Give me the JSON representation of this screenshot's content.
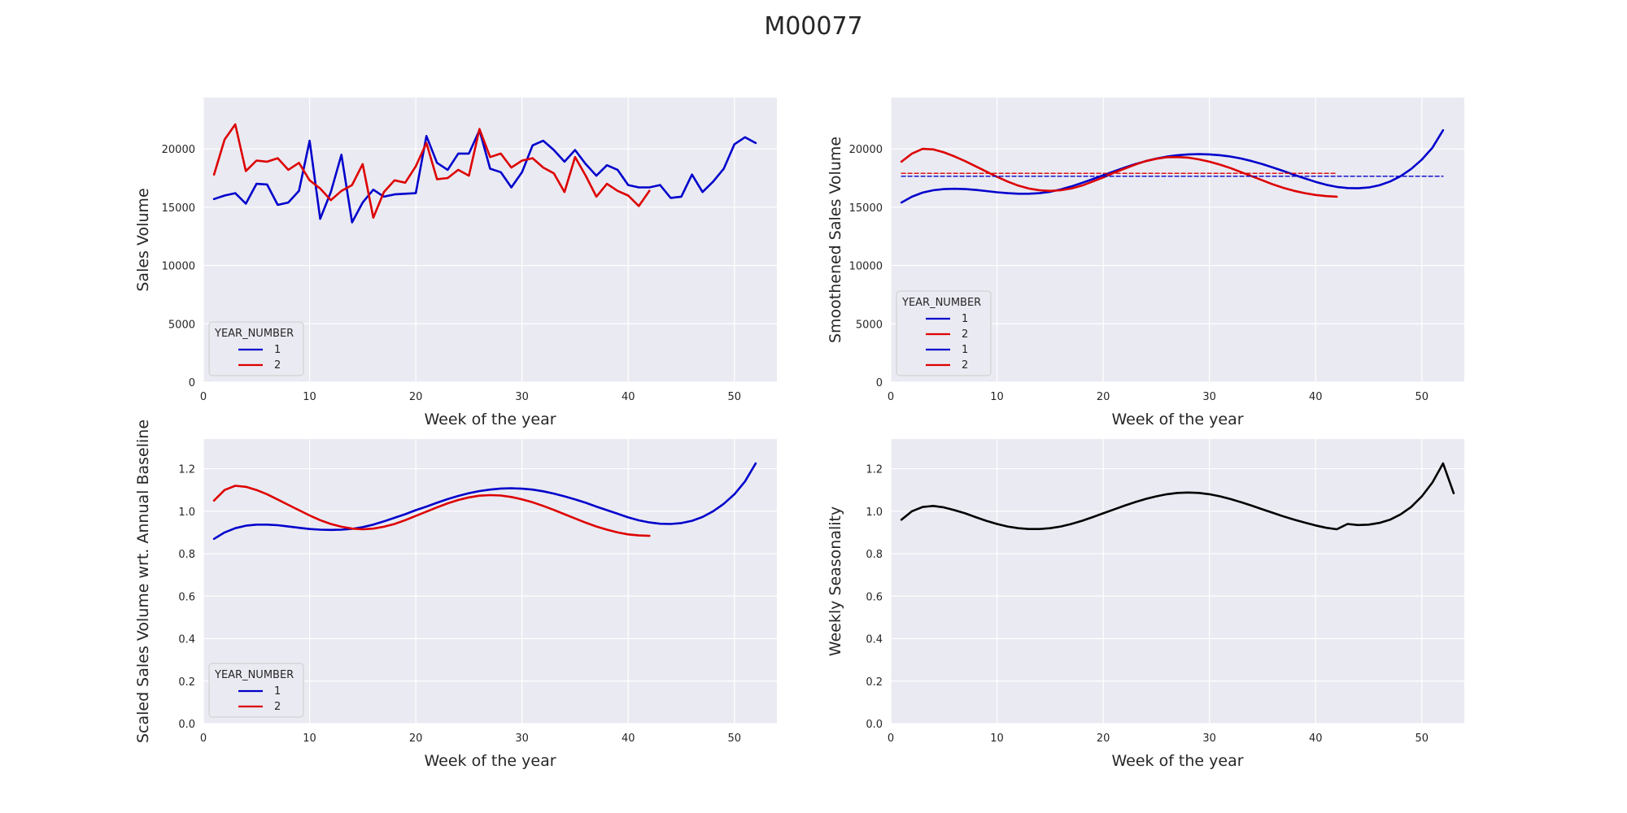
{
  "title": "M00077",
  "colors": {
    "year1": "#0000cc",
    "year2": "#dd0000",
    "combined": "#000000",
    "panel_bg": "#eaeaf2",
    "grid": "#ffffff"
  },
  "chart_data": [
    {
      "type": "line",
      "xlabel": "Week of the year",
      "ylabel": "Sales Volume",
      "xlim": [
        0,
        54
      ],
      "ylim": [
        0,
        24400
      ],
      "xticks": [
        0,
        10,
        20,
        30,
        40,
        50
      ],
      "yticks": [
        0,
        5000,
        10000,
        15000,
        20000
      ],
      "grid": true,
      "legend": {
        "title": "YEAR_NUMBER",
        "placement": "lower-left",
        "entries": [
          "1",
          "2"
        ]
      },
      "series": [
        {
          "name": "1",
          "color": "year1",
          "x": [
            1,
            2,
            3,
            4,
            5,
            6,
            7,
            8,
            9,
            10,
            11,
            12,
            13,
            14,
            15,
            16,
            17,
            18,
            19,
            20,
            21,
            22,
            23,
            24,
            25,
            26,
            27,
            28,
            29,
            30,
            31,
            32,
            33,
            34,
            35,
            36,
            37,
            38,
            39,
            40,
            41,
            42,
            43,
            44,
            45,
            46,
            47,
            48,
            49,
            50,
            51,
            52
          ],
          "y": [
            15700,
            16000,
            16200,
            15300,
            17000,
            16950,
            15200,
            15400,
            16400,
            20700,
            14000,
            16300,
            19500,
            13700,
            15400,
            16500,
            15900,
            16100,
            16150,
            16200,
            21100,
            18800,
            18200,
            19600,
            19600,
            21600,
            18300,
            18000,
            16700,
            18000,
            20300,
            20700,
            19900,
            18900,
            19900,
            18700,
            17700,
            18600,
            18200,
            16900,
            16700,
            16700,
            16900,
            15800,
            15900,
            17800,
            16300,
            17200,
            18300,
            20400,
            21000,
            20500
          ]
        },
        {
          "name": "2",
          "color": "year2",
          "x": [
            1,
            2,
            3,
            4,
            5,
            6,
            7,
            8,
            9,
            10,
            11,
            12,
            13,
            14,
            15,
            16,
            17,
            18,
            19,
            20,
            21,
            22,
            23,
            24,
            25,
            26,
            27,
            28,
            29,
            30,
            31,
            32,
            33,
            34,
            35,
            36,
            37,
            38,
            39,
            40,
            41,
            42
          ],
          "y": [
            17800,
            20800,
            22100,
            18100,
            19000,
            18900,
            19200,
            18200,
            18800,
            17300,
            16600,
            15600,
            16400,
            16900,
            18700,
            14100,
            16300,
            17300,
            17100,
            18500,
            20500,
            17400,
            17500,
            18200,
            17700,
            21700,
            19300,
            19600,
            18400,
            19000,
            19200,
            18400,
            17900,
            16300,
            19300,
            17700,
            15900,
            17000,
            16400,
            16000,
            15100,
            16400
          ]
        }
      ]
    },
    {
      "type": "line",
      "xlabel": "Week of the year",
      "ylabel": "Smoothened Sales Volume",
      "xlim": [
        0,
        54
      ],
      "ylim": [
        0,
        24400
      ],
      "xticks": [
        0,
        10,
        20,
        30,
        40,
        50
      ],
      "yticks": [
        0,
        5000,
        10000,
        15000,
        20000
      ],
      "grid": true,
      "legend": {
        "title": "YEAR_NUMBER",
        "placement": "lower-left",
        "entries": [
          "1",
          "2",
          "1",
          "2"
        ]
      },
      "series": [
        {
          "name": "1",
          "color": "year1",
          "style": "solid",
          "x": [
            1,
            2,
            3,
            4,
            5,
            6,
            7,
            8,
            9,
            10,
            11,
            12,
            13,
            14,
            15,
            16,
            17,
            18,
            19,
            20,
            21,
            22,
            23,
            24,
            25,
            26,
            27,
            28,
            29,
            30,
            31,
            32,
            33,
            34,
            35,
            36,
            37,
            38,
            39,
            40,
            41,
            42,
            43,
            44,
            45,
            46,
            47,
            48,
            49,
            50,
            51,
            52
          ],
          "y": [
            15400,
            15900,
            16250,
            16450,
            16550,
            16580,
            16550,
            16480,
            16380,
            16280,
            16200,
            16150,
            16150,
            16200,
            16320,
            16520,
            16780,
            17080,
            17400,
            17740,
            18070,
            18390,
            18690,
            18950,
            19170,
            19340,
            19460,
            19530,
            19550,
            19530,
            19460,
            19340,
            19170,
            18950,
            18690,
            18400,
            18090,
            17770,
            17460,
            17170,
            16920,
            16740,
            16640,
            16620,
            16690,
            16880,
            17200,
            17660,
            18280,
            19080,
            20100,
            21600
          ]
        },
        {
          "name": "2",
          "color": "year2",
          "style": "solid",
          "x": [
            1,
            2,
            3,
            4,
            5,
            6,
            7,
            8,
            9,
            10,
            11,
            12,
            13,
            14,
            15,
            16,
            17,
            18,
            19,
            20,
            21,
            22,
            23,
            24,
            25,
            26,
            27,
            28,
            29,
            30,
            31,
            32,
            33,
            34,
            35,
            36,
            37,
            38,
            39,
            40,
            41,
            42
          ],
          "y": [
            18900,
            19600,
            20000,
            19950,
            19700,
            19350,
            18950,
            18500,
            18050,
            17600,
            17200,
            16850,
            16600,
            16450,
            16400,
            16450,
            16600,
            16850,
            17200,
            17550,
            17950,
            18300,
            18650,
            18950,
            19150,
            19280,
            19300,
            19250,
            19100,
            18900,
            18650,
            18350,
            18000,
            17650,
            17300,
            16950,
            16650,
            16400,
            16200,
            16050,
            15950,
            15900
          ]
        },
        {
          "name": "1",
          "color": "year1",
          "style": "dashed",
          "x": [
            1,
            52
          ],
          "y": [
            17650,
            17650
          ]
        },
        {
          "name": "2",
          "color": "year2",
          "style": "dashed",
          "x": [
            1,
            42
          ],
          "y": [
            17900,
            17900
          ]
        }
      ]
    },
    {
      "type": "line",
      "xlabel": "Week of the year",
      "ylabel": "Scaled Sales Volume wrt. Annual Baseline",
      "xlim": [
        0,
        54
      ],
      "ylim": [
        0,
        1.34
      ],
      "xticks": [
        0,
        10,
        20,
        30,
        40,
        50
      ],
      "yticks": [
        0.0,
        0.2,
        0.4,
        0.6,
        0.8,
        1.0,
        1.2
      ],
      "grid": true,
      "legend": {
        "title": "YEAR_NUMBER",
        "placement": "lower-left",
        "entries": [
          "1",
          "2"
        ]
      },
      "series": [
        {
          "name": "1",
          "color": "year1",
          "x": [
            1,
            2,
            3,
            4,
            5,
            6,
            7,
            8,
            9,
            10,
            11,
            12,
            13,
            14,
            15,
            16,
            17,
            18,
            19,
            20,
            21,
            22,
            23,
            24,
            25,
            26,
            27,
            28,
            29,
            30,
            31,
            32,
            33,
            34,
            35,
            36,
            37,
            38,
            39,
            40,
            41,
            42,
            43,
            44,
            45,
            46,
            47,
            48,
            49,
            50,
            51,
            52
          ],
          "y": [
            0.87,
            0.9,
            0.92,
            0.932,
            0.937,
            0.937,
            0.934,
            0.928,
            0.922,
            0.916,
            0.913,
            0.912,
            0.913,
            0.917,
            0.925,
            0.937,
            0.952,
            0.969,
            0.986,
            1.005,
            1.022,
            1.04,
            1.057,
            1.072,
            1.085,
            1.095,
            1.102,
            1.107,
            1.108,
            1.106,
            1.102,
            1.094,
            1.083,
            1.07,
            1.056,
            1.04,
            1.022,
            1.005,
            0.988,
            0.971,
            0.957,
            0.947,
            0.941,
            0.94,
            0.944,
            0.955,
            0.973,
            1.0,
            1.035,
            1.08,
            1.14,
            1.225
          ]
        },
        {
          "name": "2",
          "color": "year2",
          "x": [
            1,
            2,
            3,
            4,
            5,
            6,
            7,
            8,
            9,
            10,
            11,
            12,
            13,
            14,
            15,
            16,
            17,
            18,
            19,
            20,
            21,
            22,
            23,
            24,
            25,
            26,
            27,
            28,
            29,
            30,
            31,
            32,
            33,
            34,
            35,
            36,
            37,
            38,
            39,
            40,
            41,
            42
          ],
          "y": [
            1.05,
            1.1,
            1.12,
            1.115,
            1.1,
            1.08,
            1.055,
            1.03,
            1.005,
            0.98,
            0.958,
            0.94,
            0.927,
            0.918,
            0.915,
            0.918,
            0.927,
            0.94,
            0.958,
            0.978,
            0.998,
            1.018,
            1.037,
            1.053,
            1.065,
            1.073,
            1.076,
            1.074,
            1.067,
            1.056,
            1.042,
            1.025,
            1.006,
            0.986,
            0.966,
            0.946,
            0.928,
            0.913,
            0.9,
            0.891,
            0.886,
            0.884
          ]
        }
      ]
    },
    {
      "type": "line",
      "xlabel": "Week of the year",
      "ylabel": "Weekly Seasonality",
      "xlim": [
        0,
        54
      ],
      "ylim": [
        0,
        1.34
      ],
      "xticks": [
        0,
        10,
        20,
        30,
        40,
        50
      ],
      "yticks": [
        0.0,
        0.2,
        0.4,
        0.6,
        0.8,
        1.0,
        1.2
      ],
      "grid": true,
      "series": [
        {
          "color": "combined",
          "x": [
            1,
            2,
            3,
            4,
            5,
            6,
            7,
            8,
            9,
            10,
            11,
            12,
            13,
            14,
            15,
            16,
            17,
            18,
            19,
            20,
            21,
            22,
            23,
            24,
            25,
            26,
            27,
            28,
            29,
            30,
            31,
            32,
            33,
            34,
            35,
            36,
            37,
            38,
            39,
            40,
            41,
            42,
            43,
            44,
            45,
            46,
            47,
            48,
            49,
            50,
            51,
            52,
            53
          ],
          "y": [
            0.96,
            1.0,
            1.02,
            1.025,
            1.018,
            1.005,
            0.99,
            0.972,
            0.955,
            0.94,
            0.928,
            0.92,
            0.916,
            0.916,
            0.92,
            0.928,
            0.94,
            0.955,
            0.972,
            0.99,
            1.008,
            1.026,
            1.043,
            1.058,
            1.07,
            1.08,
            1.086,
            1.088,
            1.086,
            1.08,
            1.07,
            1.057,
            1.042,
            1.026,
            1.009,
            0.992,
            0.975,
            0.96,
            0.946,
            0.933,
            0.922,
            0.915,
            0.94,
            0.935,
            0.937,
            0.945,
            0.96,
            0.985,
            1.02,
            1.07,
            1.135,
            1.225,
            1.085
          ]
        }
      ]
    }
  ]
}
